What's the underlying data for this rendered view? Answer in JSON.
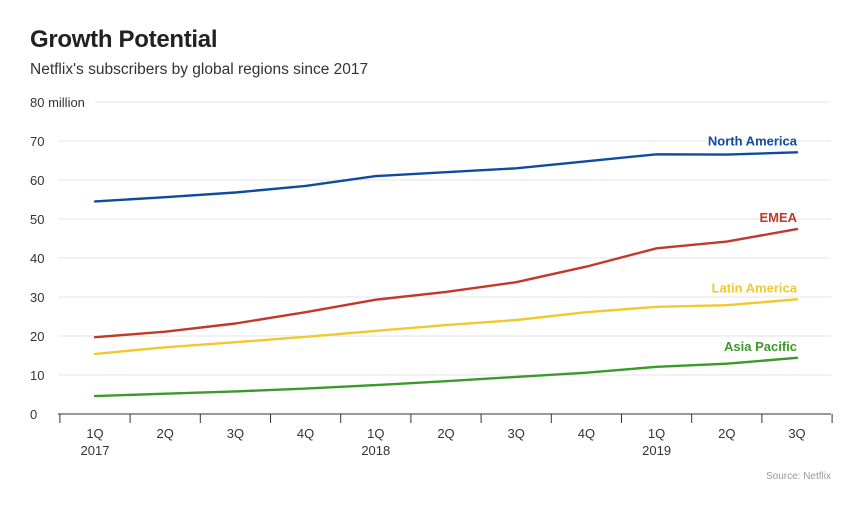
{
  "chart_data": {
    "type": "line",
    "title": "Growth Potential",
    "subtitle": "Netflix's subscribers by global regions since 2017",
    "y_unit_label": "80 million",
    "ylim": [
      0,
      80
    ],
    "yticks": [
      0,
      10,
      20,
      30,
      40,
      50,
      60,
      70
    ],
    "grid": true,
    "categories": [
      "1Q",
      "2Q",
      "3Q",
      "4Q",
      "1Q",
      "2Q",
      "3Q",
      "4Q",
      "1Q",
      "2Q",
      "3Q"
    ],
    "years": [
      {
        "label": "2017",
        "index": 0
      },
      {
        "label": "2018",
        "index": 4
      },
      {
        "label": "2019",
        "index": 8
      }
    ],
    "series": [
      {
        "name": "North America",
        "color": "#0f4c9e",
        "values": [
          54.5,
          55.6,
          56.8,
          58.5,
          61.0,
          62.0,
          63.0,
          64.8,
          66.6,
          66.5,
          67.1
        ]
      },
      {
        "name": "EMEA",
        "color": "#c0392b",
        "values": [
          19.7,
          21.1,
          23.2,
          26.1,
          29.3,
          31.3,
          33.8,
          37.8,
          42.5,
          44.2,
          47.4
        ]
      },
      {
        "name": "Latin America",
        "color": "#f2c82f",
        "values": [
          15.4,
          17.1,
          18.4,
          19.8,
          21.3,
          22.8,
          24.1,
          26.1,
          27.5,
          27.9,
          29.4
        ]
      },
      {
        "name": "Asia Pacific",
        "color": "#3a9a2a",
        "values": [
          4.6,
          5.2,
          5.8,
          6.5,
          7.4,
          8.4,
          9.5,
          10.6,
          12.1,
          12.9,
          14.4
        ]
      }
    ],
    "source": "Source: Netflix"
  }
}
